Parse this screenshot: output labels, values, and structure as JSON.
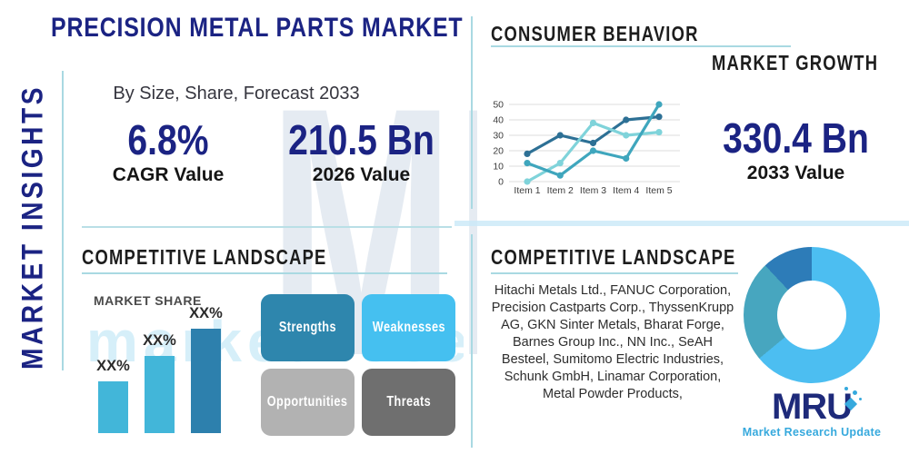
{
  "header": {
    "title": "PRECISION METAL PARTS MARKET",
    "subtitle": "By Size, Share, Forecast 2033",
    "sidebar_label": "MARKET INSIGHTS"
  },
  "stats": {
    "cagr": {
      "value": "6.8%",
      "label": "CAGR Value"
    },
    "y2026": {
      "value": "210.5 Bn",
      "label": "2026 Value"
    },
    "y2033": {
      "value": "330.4 Bn",
      "label": "2033 Value"
    }
  },
  "sections": {
    "consumer_behavior": "CONSUMER BEHAVIOR",
    "market_growth": "MARKET GROWTH",
    "competitive_landscape_left": "COMPETITIVE LANDSCAPE",
    "competitive_landscape_right": "COMPETITIVE LANDSCAPE"
  },
  "companies_text": "Hitachi Metals Ltd., FANUC Corporation, Precision Castparts Corp., ThyssenKrupp AG, GKN Sinter Metals, Bharat Forge, Barnes Group Inc., NN Inc., SeAH Besteel, Sumitomo Electric Industries, Schunk GmbH, Linamar Corporation, Metal Powder Products,",
  "swot": {
    "items": [
      {
        "label": "Strengths",
        "color": "#2e86ad"
      },
      {
        "label": "Weaknesses",
        "color": "#45c0f0"
      },
      {
        "label": "Opportunities",
        "color": "#b2b2b2"
      },
      {
        "label": "Threats",
        "color": "#6f6f6f"
      }
    ]
  },
  "logo": {
    "text": "MRU",
    "tagline": "Market Research Update"
  },
  "watermark": {
    "big_text": "MRU",
    "low_text": "market research"
  },
  "colors": {
    "navy": "#1b2383",
    "heading_black": "#1d1d1d",
    "underline_teal": "#a9d9e2",
    "divider_teal": "#b9dfe6",
    "logo_navy": "#1e2a7a",
    "logo_blue": "#36a9dd"
  },
  "chart_data": [
    {
      "type": "line",
      "section": "CONSUMER BEHAVIOR",
      "x": [
        "Item 1",
        "Item 2",
        "Item 3",
        "Item 4",
        "Item 5"
      ],
      "ylim": [
        0,
        50
      ],
      "yticks": [
        0,
        10,
        20,
        30,
        40,
        50
      ],
      "grid": true,
      "legend": "none",
      "series": [
        {
          "name": "series-dark-blue",
          "color": "#2d7095",
          "values": [
            18,
            30,
            25,
            40,
            42
          ]
        },
        {
          "name": "series-teal",
          "color": "#3fa6bd",
          "values": [
            12,
            4,
            20,
            15,
            50
          ]
        },
        {
          "name": "series-light-cyan",
          "color": "#7fd3da",
          "values": [
            0,
            12,
            38,
            30,
            32
          ]
        }
      ]
    },
    {
      "type": "bar",
      "title": "MARKET SHARE",
      "categories": [
        "bar-1",
        "bar-2",
        "bar-3"
      ],
      "labels": [
        "XX%",
        "XX%",
        "XX%"
      ],
      "values": [
        57,
        85,
        115
      ],
      "value_unit": "pixel-height (no axis shown)",
      "colors": [
        "#42b6d9",
        "#42b6d9",
        "#2d80ad"
      ]
    },
    {
      "type": "pie",
      "subtype": "donut",
      "slices": [
        {
          "name": "light-blue-slice",
          "value": 64,
          "color": "#4cbef1"
        },
        {
          "name": "teal-slice",
          "value": 24,
          "color": "#47a6bf"
        },
        {
          "name": "dark-blue-slice",
          "value": 12,
          "color": "#2d7cb8"
        }
      ]
    }
  ]
}
